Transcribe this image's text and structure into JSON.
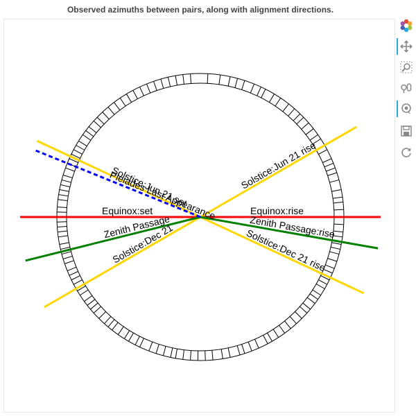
{
  "chart_data": {
    "type": "polar-azimuth",
    "title": "Observed azimuths between pairs, along with alignment directions.",
    "alignments": [
      {
        "label": "Equinox:rise",
        "azimuth": 90,
        "color": "#ff0000"
      },
      {
        "label": "Equinox:set",
        "azimuth": 270,
        "color": "#ff0000"
      },
      {
        "label": "Solstice:Jun 21 rise",
        "azimuth": 60,
        "color": "#ffd700"
      },
      {
        "label": "Solstice:Jun 21 set",
        "azimuth": 295,
        "color": "#ffd700"
      },
      {
        "label": "Solstice:Dec 21 rise",
        "azimuth": 115,
        "color": "#ffd700"
      },
      {
        "label": "Solstice:Dec 21",
        "azimuth": 240,
        "color": "#ffd700"
      },
      {
        "label": "Zenith Passage:rise",
        "azimuth": 100,
        "color": "#008000"
      },
      {
        "label": "Zenith Passage",
        "azimuth": 256,
        "color": "#008000"
      },
      {
        "label": "Pleiades Last Appearance",
        "azimuth": 292,
        "color": "#0000ff",
        "dashed": true
      }
    ],
    "observed_azimuths": [
      3,
      8,
      12,
      15,
      18,
      22,
      25,
      27,
      31,
      34,
      38,
      41,
      44,
      46,
      49,
      52,
      55,
      57,
      60,
      62,
      66,
      68,
      70,
      72,
      75,
      79,
      82,
      84,
      87,
      90,
      93,
      96,
      98,
      101,
      103,
      105,
      108,
      111,
      113,
      116,
      118,
      120,
      123,
      125,
      127,
      130,
      132,
      135,
      138,
      141,
      144,
      147,
      150,
      152,
      156,
      159,
      162,
      164,
      168,
      171,
      175,
      178,
      181,
      184,
      187,
      190,
      192,
      195,
      198,
      201,
      205,
      207,
      210,
      212,
      215,
      218,
      220,
      222,
      225,
      228,
      230,
      232,
      234,
      237,
      239,
      242,
      244,
      246,
      248,
      251,
      253,
      255,
      257,
      259,
      262,
      264,
      266,
      268,
      270,
      272,
      274,
      277,
      279,
      281,
      283,
      285,
      287,
      290,
      292,
      294,
      296,
      298,
      300,
      302,
      305,
      307,
      309,
      312,
      314,
      317,
      320,
      323,
      326,
      329,
      332,
      335,
      338,
      341,
      344,
      347,
      350,
      353,
      356
    ]
  },
  "toolbar": {
    "tools": [
      {
        "name": "bokeh-logo",
        "icon": "bokeh-logo-icon"
      },
      {
        "name": "pan",
        "icon": "pan-icon"
      },
      {
        "name": "box-zoom",
        "icon": "box-zoom-icon"
      },
      {
        "name": "wheel-zoom",
        "icon": "wheel-zoom-icon"
      },
      {
        "name": "tap",
        "icon": "tap-icon"
      },
      {
        "name": "save",
        "icon": "save-icon"
      },
      {
        "name": "reset",
        "icon": "reset-icon"
      }
    ]
  }
}
